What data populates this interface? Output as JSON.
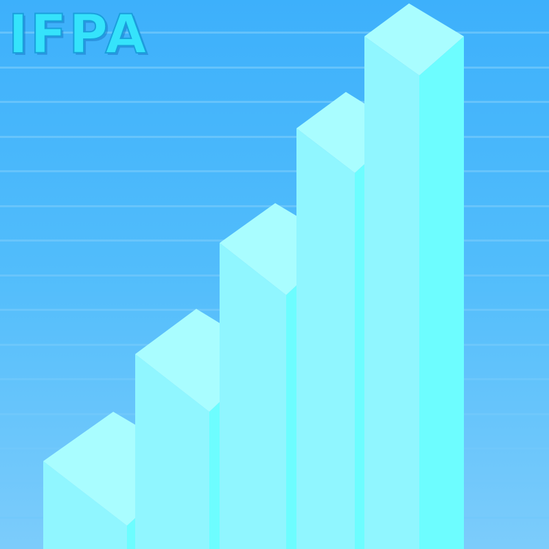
{
  "logo": {
    "text": "IFPA"
  },
  "graphic": {
    "type": "rising-bar-staircase",
    "bar_count": 5,
    "relative_heights": [
      1,
      2,
      3,
      4,
      5
    ]
  },
  "colors": {
    "background_top": "#3db0fb",
    "background_bottom": "#7cccfb",
    "gridline": "#72c8fb",
    "logo_fill": "#35e3fb",
    "logo_stroke": "#1a9fdc",
    "bar_top": "#a9fdff",
    "bar_left": "#90f6ff",
    "bar_right": "#6dfdff"
  }
}
